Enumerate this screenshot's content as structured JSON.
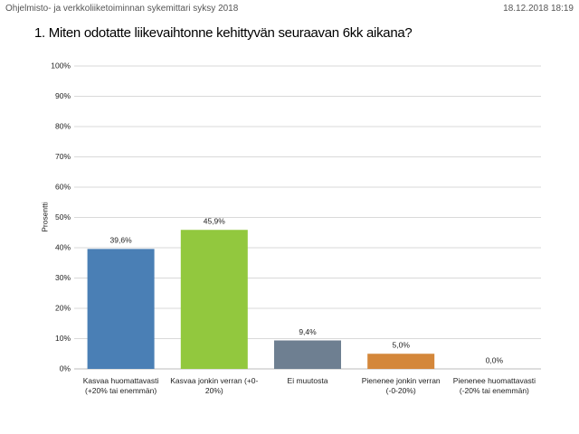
{
  "header": {
    "report": "Ohjelmisto- ja verkkoliiketoiminnan sykemittari syksy 2018",
    "timestamp": "18.12.2018 18:19"
  },
  "chart_data": {
    "type": "bar",
    "title": "1. Miten odotatte liikevaihtonne kehittyvän seuraavan 6kk aikana?",
    "y_label": "Prosentti",
    "categories": [
      "Kasvaa huomattavasti (+20% tai enemmän)",
      "Kasvaa jonkin verran (+0-20%)",
      "Ei muutosta",
      "Pienenee jonkin verran (-0-20%)",
      "Pienenee huomattavasti (-20% tai enemmän)"
    ],
    "values": [
      39.6,
      45.9,
      9.4,
      5.0,
      0.0
    ],
    "value_labels": [
      "39,6%",
      "45,9%",
      "9,4%",
      "5,0%",
      "0,0%"
    ],
    "colors": [
      "#4a7fb5",
      "#92c83e",
      "#6e7f91",
      "#d4873a",
      "#b04040"
    ],
    "ylim": [
      0,
      100
    ],
    "yticks": [
      {
        "value": 0,
        "label": "0%"
      },
      {
        "value": 10,
        "label": "10%"
      },
      {
        "value": 20,
        "label": "20%"
      },
      {
        "value": 30,
        "label": "30%"
      },
      {
        "value": 40,
        "label": "40%"
      },
      {
        "value": 50,
        "label": "50%"
      },
      {
        "value": 60,
        "label": "60%"
      },
      {
        "value": 70,
        "label": "70%"
      },
      {
        "value": 80,
        "label": "80%"
      },
      {
        "value": 90,
        "label": "90%"
      },
      {
        "value": 100,
        "label": "100%"
      }
    ],
    "grid": true
  }
}
